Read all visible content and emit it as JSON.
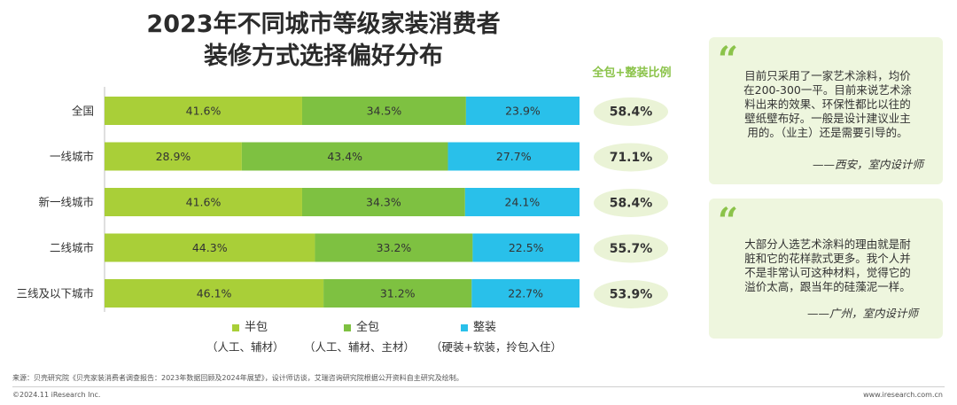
{
  "title": {
    "line1": "2023年不同城市等级家装消费者",
    "line2": "装修方式选择偏好分布"
  },
  "ratio_header": "全包+整装比例",
  "chart_data": {
    "type": "bar",
    "orientation": "horizontal",
    "stacked": true,
    "categories": [
      "全国",
      "一线城市",
      "新一线城市",
      "二线城市",
      "三线及以下城市"
    ],
    "series": [
      {
        "name": "半包",
        "values": [
          41.6,
          28.9,
          41.6,
          44.3,
          46.1
        ],
        "color": "#a9cf38"
      },
      {
        "name": "全包",
        "values": [
          34.5,
          43.4,
          34.3,
          33.2,
          31.2
        ],
        "color": "#7ec141"
      },
      {
        "name": "整装",
        "values": [
          23.9,
          27.7,
          24.1,
          22.5,
          22.7
        ],
        "color": "#29c0ea"
      }
    ],
    "value_labels": [
      [
        "41.6%",
        "34.5%",
        "23.9%"
      ],
      [
        "28.9%",
        "43.4%",
        "27.7%"
      ],
      [
        "41.6%",
        "34.3%",
        "24.1%"
      ],
      [
        "44.3%",
        "33.2%",
        "22.5%"
      ],
      [
        "46.1%",
        "31.2%",
        "22.7%"
      ]
    ],
    "combined_ratio": [
      "58.4%",
      "71.1%",
      "58.4%",
      "55.7%",
      "53.9%"
    ],
    "xlim": [
      0,
      100
    ]
  },
  "legend": [
    {
      "label": "半包",
      "sub": "（人工、辅材）",
      "color": "#a9cf38"
    },
    {
      "label": "全包",
      "sub": "（人工、辅材、主材）",
      "color": "#7ec141"
    },
    {
      "label": "整装",
      "sub": "（硬装+软装，拎包入住）",
      "color": "#29c0ea"
    }
  ],
  "quotes": [
    {
      "mark": "“",
      "lines": [
        "目前只采用了一家艺术涂料，均价",
        "在200-300一平。目前来说艺术涂",
        "料出来的效果、环保性都比以往的",
        "壁纸壁布好。一般是设计建议业主",
        "用的。（业主）还是需要引导的。"
      ],
      "source": "——西安，室内设计师"
    },
    {
      "mark": "“",
      "lines": [
        "大部分人选艺术涂料的理由就是耐",
        "脏和它的花样款式更多。我个人并",
        "不是非常认可这种材料，觉得它的",
        "溢价太高，跟当年的硅藻泥一样。"
      ],
      "source": "——广州，室内设计师"
    }
  ],
  "footer": {
    "note": "来源：贝壳研究院《贝壳家装消费者调查报告：2023年数据回顾及2024年展望》，设计师访谈，艾瑞咨询研究院根据公开资料自主研究及绘制。",
    "copyright": "©2024.11 iResearch Inc.",
    "url": "www.iresearch.com.cn"
  },
  "colors": {
    "ratio_oval": "#eaf3d6",
    "ratio_text": "#333333",
    "accent": "#8bc34a"
  }
}
